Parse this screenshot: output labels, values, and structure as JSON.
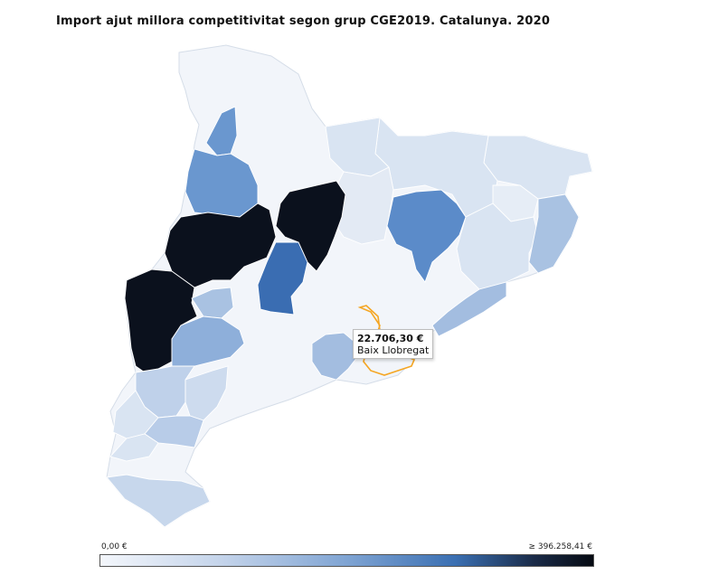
{
  "title": "Import ajut millora competitivitat segon grup CGE2019. Catalunya. 2020",
  "tooltip": {
    "value": "22.706,30 €",
    "region": "Baix Llobregat",
    "highlight_color": "#f5a623"
  },
  "legend": {
    "min_label": "0,00 €",
    "max_label": "≥ 396.258,41 €",
    "color_low": "#f3f6fb",
    "color_high": "#060a12"
  },
  "colors": {
    "very_light": "#f2f5fa",
    "light": "#d9e4f2",
    "light_mid": "#c0d2ea",
    "mid": "#a3bde0",
    "mid_dark": "#7ea3d5",
    "blue": "#5b8bc9",
    "dark_blue": "#3a6db2",
    "black": "#0b111d"
  }
}
